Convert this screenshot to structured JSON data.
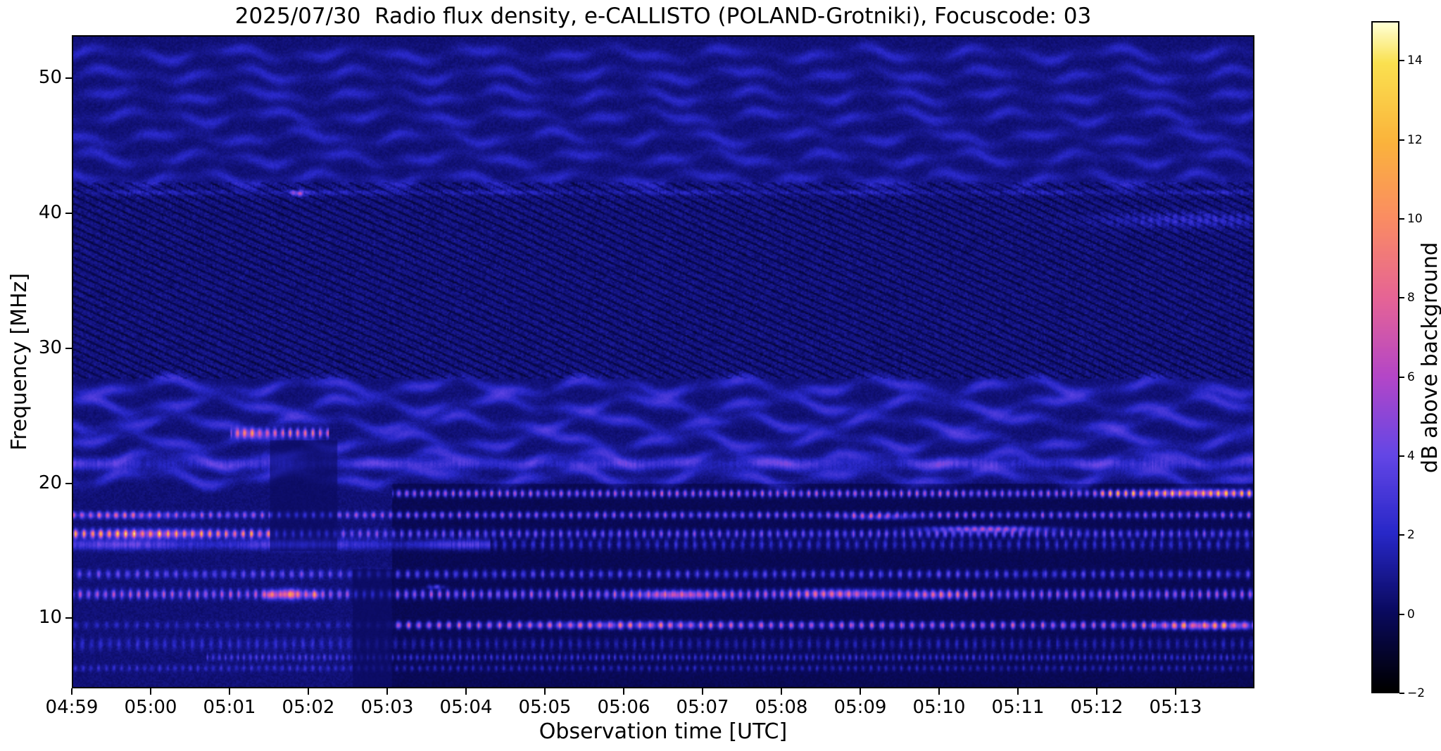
{
  "chart_data": {
    "type": "heatmap",
    "title": "2025/07/30  Radio flux density, e-CALLISTO (POLAND-Grotniki), Focuscode: 03",
    "xlabel": "Observation time [UTC]",
    "ylabel": "Frequency [MHz]",
    "x_tick_labels": [
      "04:59",
      "05:00",
      "05:01",
      "05:02",
      "05:03",
      "05:04",
      "05:05",
      "05:06",
      "05:07",
      "05:08",
      "05:09",
      "05:10",
      "05:11",
      "05:12",
      "05:13"
    ],
    "x_range_minutes": [
      0,
      15
    ],
    "y_ticks_mhz": [
      50,
      40,
      30,
      20,
      10
    ],
    "freq_range_mhz": [
      4.8,
      53.2
    ],
    "colorbar": {
      "label": "dB above background",
      "ticks": [
        14,
        12,
        10,
        8,
        6,
        4,
        2,
        0,
        -2
      ],
      "range": [
        -2,
        15
      ]
    },
    "colormap_stops": [
      {
        "v": -2,
        "c": "#000000"
      },
      {
        "v": 0,
        "c": "#0a0a5e"
      },
      {
        "v": 2,
        "c": "#2828c8"
      },
      {
        "v": 4,
        "c": "#6446e6"
      },
      {
        "v": 6,
        "c": "#b446c8"
      },
      {
        "v": 8,
        "c": "#e66496"
      },
      {
        "v": 10,
        "c": "#fa8c64"
      },
      {
        "v": 12,
        "c": "#fab43c"
      },
      {
        "v": 14,
        "c": "#fae150"
      },
      {
        "v": 15,
        "c": "#ffffd2"
      }
    ],
    "background_db": 0.45,
    "ripple_regions": [
      {
        "f0": 42.6,
        "f1": 53.0,
        "spacing": 1.55,
        "amp": 1.6,
        "wave_amp": 0.35,
        "wave_len": 1.6
      },
      {
        "f0": 20.4,
        "f1": 27.9,
        "spacing": 1.35,
        "amp": 2.3,
        "wave_amp": 0.45,
        "wave_len": 1.8
      }
    ],
    "diagonal_region": {
      "f0": 27.8,
      "f1": 42.4,
      "amp": 0.9,
      "dark": 1.3
    },
    "post_0503_darkening": {
      "t_start": 4.05,
      "f_max": 19.9,
      "mult": 0.8,
      "sub": 0.55
    },
    "bands": [
      {
        "f": 41.6,
        "sigma": 0.13,
        "segments": [
          {
            "t0": 0,
            "t1": 15,
            "amp": 1.1,
            "dot": 0
          }
        ]
      },
      {
        "f": 23.7,
        "sigma": 0.22,
        "segments": [
          {
            "t0": 2.0,
            "t1": 3.25,
            "amp": 4.5,
            "dot": 1
          }
        ]
      },
      {
        "f": 21.4,
        "sigma": 0.3,
        "segments": [
          {
            "t0": 0,
            "t1": 15,
            "amp": 1.8,
            "dot": 0
          }
        ]
      },
      {
        "f": 19.2,
        "sigma": 0.17,
        "segments": [
          {
            "t0": 4.05,
            "t1": 13.0,
            "amp": 4.0,
            "dot": 1
          },
          {
            "t0": 13.0,
            "t1": 15,
            "amp": 6.5,
            "dot": 1
          }
        ]
      },
      {
        "f": 17.6,
        "sigma": 0.16,
        "segments": [
          {
            "t0": 0,
            "t1": 15,
            "amp": 3.4,
            "dot": 1
          }
        ]
      },
      {
        "f": 16.2,
        "sigma": 0.2,
        "segments": [
          {
            "t0": 0,
            "t1": 2.55,
            "amp": 6.0,
            "dot": 1
          },
          {
            "t0": 2.55,
            "t1": 15,
            "amp": 2.8,
            "dot": 1
          }
        ]
      },
      {
        "f": 15.4,
        "sigma": 0.26,
        "segments": [
          {
            "t0": 0,
            "t1": 5.3,
            "amp": 3.0,
            "dot": 0
          },
          {
            "t0": 5.3,
            "t1": 15,
            "amp": 1.5,
            "dot": 1
          }
        ]
      },
      {
        "f": 13.2,
        "sigma": 0.2,
        "segments": [
          {
            "t0": 0,
            "t1": 15,
            "amp": 2.3,
            "dot": 1
          }
        ]
      },
      {
        "f": 11.7,
        "sigma": 0.22,
        "segments": [
          {
            "t0": 0,
            "t1": 15,
            "amp": 3.6,
            "dot": 1
          }
        ]
      },
      {
        "f": 9.4,
        "sigma": 0.18,
        "segments": [
          {
            "t0": 0,
            "t1": 4.05,
            "amp": 1.0,
            "dot": 1
          },
          {
            "t0": 4.05,
            "t1": 15,
            "amp": 4.2,
            "dot": 1
          }
        ]
      },
      {
        "f": 8.0,
        "sigma": 0.3,
        "segments": [
          {
            "t0": 0,
            "t1": 15,
            "amp": 1.1,
            "dot": 1
          }
        ]
      },
      {
        "f": 7.0,
        "sigma": 0.16,
        "segments": [
          {
            "t0": 1.7,
            "t1": 15,
            "amp": 1.7,
            "dot": 1
          }
        ]
      },
      {
        "f": 6.2,
        "sigma": 0.16,
        "segments": [
          {
            "t0": 0,
            "t1": 15,
            "amp": 1.2,
            "dot": 1
          }
        ]
      }
    ],
    "blobs": [
      {
        "t": 2.85,
        "f": 41.6,
        "amp": 6,
        "st": 0.07,
        "sf": 0.15
      },
      {
        "t": 2.75,
        "f": 11.75,
        "amp": 9,
        "st": 0.1,
        "sf": 0.25
      },
      {
        "t": 2.5,
        "f": 11.7,
        "amp": 7,
        "st": 0.06,
        "sf": 0.22
      },
      {
        "t": 3.05,
        "f": 11.7,
        "amp": 6,
        "st": 0.05,
        "sf": 0.2
      },
      {
        "t": 0.9,
        "f": 16.25,
        "amp": 3.5,
        "st": 0.55,
        "sf": 0.25
      },
      {
        "t": 0.6,
        "f": 17.6,
        "amp": 2.5,
        "st": 0.5,
        "sf": 0.18
      },
      {
        "t": 7.7,
        "f": 11.7,
        "amp": 5.5,
        "st": 0.45,
        "sf": 0.22
      },
      {
        "t": 9.7,
        "f": 11.8,
        "amp": 5,
        "st": 0.45,
        "sf": 0.22
      },
      {
        "t": 10.95,
        "f": 11.7,
        "amp": 4,
        "st": 0.3,
        "sf": 0.2
      },
      {
        "t": 11.6,
        "f": 16.6,
        "amp": 7,
        "st": 0.5,
        "sf": 0.15
      },
      {
        "t": 14.4,
        "f": 9.4,
        "amp": 6,
        "st": 0.5,
        "sf": 0.2
      },
      {
        "t": 7.0,
        "f": 9.45,
        "amp": 3,
        "st": 0.8,
        "sf": 0.2
      },
      {
        "t": 4.6,
        "f": 12.3,
        "amp": 4,
        "st": 0.07,
        "sf": 0.12
      },
      {
        "t": 10.2,
        "f": 17.5,
        "amp": 3.5,
        "st": 0.3,
        "sf": 0.15
      },
      {
        "t": 14.3,
        "f": 19.3,
        "amp": 4.5,
        "st": 0.55,
        "sf": 0.2
      },
      {
        "t": 14.2,
        "f": 39.6,
        "amp": 2.2,
        "st": 0.8,
        "sf": 0.35
      }
    ],
    "dropouts": [
      {
        "t0": 3.55,
        "t1": 4.05,
        "f0": 4.8,
        "f1": 13.6,
        "mult": 0.3
      },
      {
        "t0": 2.5,
        "t1": 3.35,
        "f0": 14.9,
        "f1": 23.2,
        "mult": 0.4
      }
    ]
  }
}
